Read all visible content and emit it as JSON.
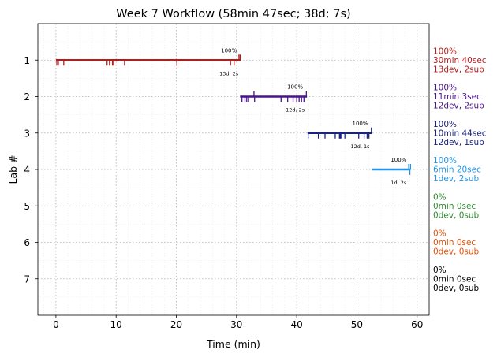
{
  "chart_data": {
    "type": "timeline",
    "title": "Week 7 Workflow (58min 47sec; 38d; 7s)",
    "xlabel": "Time (min)",
    "ylabel": "Lab #",
    "xlim": [
      -3,
      62
    ],
    "ylim": [
      8,
      0
    ],
    "x_ticks": [
      0,
      10,
      20,
      30,
      40,
      50,
      60
    ],
    "y_ticks": [
      1,
      2,
      3,
      4,
      5,
      6,
      7
    ],
    "grid": true,
    "labs": [
      {
        "lab": 1,
        "color": "#b71c1c",
        "start": 0.0,
        "end": 30.7,
        "completion": "100%",
        "summary": "13d, 2s",
        "legend": [
          "100%",
          "30min 40sec",
          "13dev, 2sub"
        ],
        "ticks_below": [
          0.15,
          0.4,
          1.3,
          8.5,
          8.9,
          9.4,
          9.6,
          11.4,
          20.1,
          29.0,
          29.6
        ],
        "ticks_above": [
          30.4,
          30.6
        ]
      },
      {
        "lab": 2,
        "color": "#4a148c",
        "start": 30.6,
        "end": 41.7,
        "completion": "100%",
        "summary": "12d, 2s",
        "legend": [
          "100%",
          "11min 3sec",
          "12dev, 2sub"
        ],
        "ticks_below": [
          30.9,
          31.4,
          31.7,
          32.0,
          33.0,
          37.4,
          38.5,
          39.4,
          40.0,
          40.4,
          40.8,
          41.2
        ],
        "ticks_above": [
          32.9,
          41.6
        ]
      },
      {
        "lab": 3,
        "color": "#1a237e",
        "start": 41.8,
        "end": 52.5,
        "completion": "100%",
        "summary": "12d, 1s",
        "legend": [
          "100%",
          "10min 44sec",
          "12dev, 1sub"
        ],
        "ticks_below": [
          41.9,
          43.6,
          44.7,
          46.4,
          47.1,
          47.2,
          47.3,
          47.5,
          48.0,
          50.3,
          51.2,
          51.7,
          52.0
        ],
        "ticks_above": [
          52.4
        ]
      },
      {
        "lab": 4,
        "color": "#2196e8",
        "start": 52.5,
        "end": 58.9,
        "completion": "100%",
        "summary": "1d, 2s",
        "legend": [
          "100%",
          "6min 20sec",
          "1dev, 2sub"
        ],
        "ticks_below": [
          58.8
        ],
        "ticks_above": [
          58.6,
          58.9
        ]
      },
      {
        "lab": 5,
        "color": "#2e8b2e",
        "legend": [
          "0%",
          "0min 0sec",
          "0dev, 0sub"
        ]
      },
      {
        "lab": 6,
        "color": "#e65100",
        "legend": [
          "0%",
          "0min 0sec",
          "0dev, 0sub"
        ]
      },
      {
        "lab": 7,
        "color": "#000000",
        "legend": [
          "0%",
          "0min 0sec",
          "0dev, 0sub"
        ]
      }
    ]
  }
}
